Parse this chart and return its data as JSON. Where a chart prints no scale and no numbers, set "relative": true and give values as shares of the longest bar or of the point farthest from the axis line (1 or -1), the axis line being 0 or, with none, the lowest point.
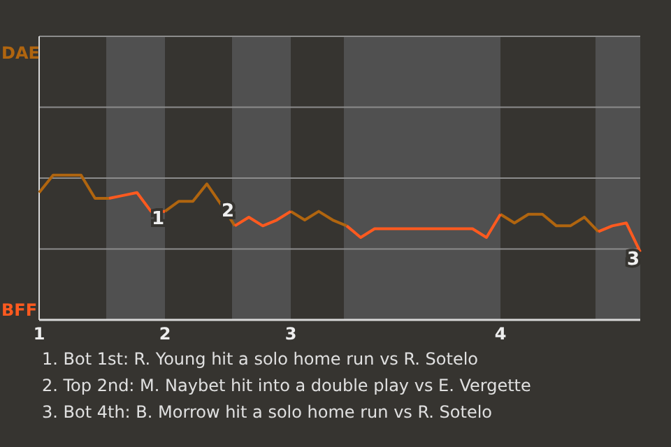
{
  "chart_data": {
    "type": "line",
    "relative": true,
    "categories": [
      "1",
      null,
      null,
      null,
      null,
      null,
      null,
      null,
      null,
      "2",
      null,
      null,
      null,
      null,
      null,
      null,
      null,
      null,
      "3",
      null,
      null,
      null,
      null,
      null,
      null,
      null,
      null,
      null,
      null,
      null,
      null,
      null,
      null,
      "4",
      null,
      null,
      null,
      null,
      null,
      null,
      null,
      null,
      null,
      null
    ],
    "series": [
      {
        "name": "DAE",
        "color": "#b0650f",
        "values": [
          0.88,
          1,
          1,
          1,
          0.84,
          0.84,
          null,
          null,
          null,
          0.75,
          0.82,
          0.82,
          0.94,
          0.8,
          0.65,
          null,
          null,
          null,
          0.75,
          0.69,
          0.75,
          0.69,
          0.65,
          null,
          null,
          null,
          null,
          null,
          null,
          null,
          null,
          null,
          null,
          0.73,
          0.67,
          0.73,
          0.73,
          0.65,
          0.65,
          0.71,
          0.61,
          null,
          null,
          null
        ]
      },
      {
        "name": "BFF",
        "color": "#ff5a1f",
        "values": [
          null,
          null,
          null,
          null,
          null,
          0.84,
          0.86,
          0.88,
          0.75,
          0.75,
          null,
          null,
          null,
          null,
          0.65,
          0.71,
          0.65,
          0.69,
          0.75,
          null,
          null,
          null,
          0.65,
          0.57,
          0.63,
          0.63,
          0.63,
          0.63,
          0.63,
          0.63,
          0.63,
          0.63,
          0.57,
          0.73,
          null,
          null,
          null,
          null,
          null,
          null,
          0.61,
          0.65,
          0.67,
          0.47
        ]
      }
    ],
    "ref_lines": [
      {
        "axis": "y",
        "value": 0.49,
        "color": "#8c8c8c"
      },
      {
        "axis": "y",
        "value": 0.98,
        "color": "#8c8c8c"
      },
      {
        "axis": "y",
        "value": 1.47,
        "color": "#8c8c8c"
      },
      {
        "axis": "y",
        "value": 1.96,
        "color": "#8c8c8c"
      }
    ],
    "marker": "none",
    "annotations": [
      {
        "text": "1",
        "y": 0.75
      },
      {
        "text": "2",
        "y": 0.8
      },
      {
        "text": "3",
        "y": 0.47
      },
      "1. Bot 1st: R. Young hit a solo home run vs R. Sotelo",
      "2. Top 2nd: M. Naybet hit into a double play vs E. Vergette",
      "3. Bot 4th: B. Morrow hit a solo home run vs R. Sotelo"
    ]
  }
}
